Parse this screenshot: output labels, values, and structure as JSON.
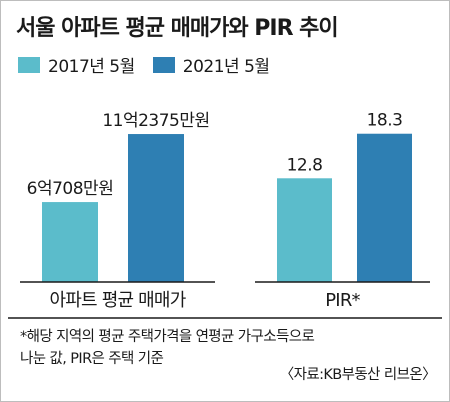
{
  "title": "서울 아파트 평균 매매가와 PIR 추이",
  "colors": {
    "series_2017": "#5bbccb",
    "series_2021": "#2e7fb3"
  },
  "chart_data": [
    {
      "type": "bar",
      "categories": [
        "아파트 평균 매매가"
      ],
      "series": [
        {
          "name": "2017년 5월",
          "values": [
            60708
          ],
          "label": "6억708만원"
        },
        {
          "name": "2021년 5월",
          "values": [
            112375
          ],
          "label": "11억2375만원"
        }
      ],
      "xlabel": "",
      "ylabel": "",
      "ylim": [
        0,
        120000
      ]
    },
    {
      "type": "bar",
      "categories": [
        "PIR*"
      ],
      "series": [
        {
          "name": "2017년 5월",
          "values": [
            12.8
          ],
          "label": "12.8"
        },
        {
          "name": "2021년 5월",
          "values": [
            18.3
          ],
          "label": "18.3"
        }
      ],
      "xlabel": "",
      "ylabel": "",
      "ylim": [
        0,
        19.5
      ]
    }
  ],
  "footnote": {
    "line1": "*해당 지역의 평균 주택가격을 연평균 가구소득으로",
    "line2": "나눈 값, PIR은 주택 기준"
  },
  "source": "〈자료:KB부동산 리브온〉"
}
